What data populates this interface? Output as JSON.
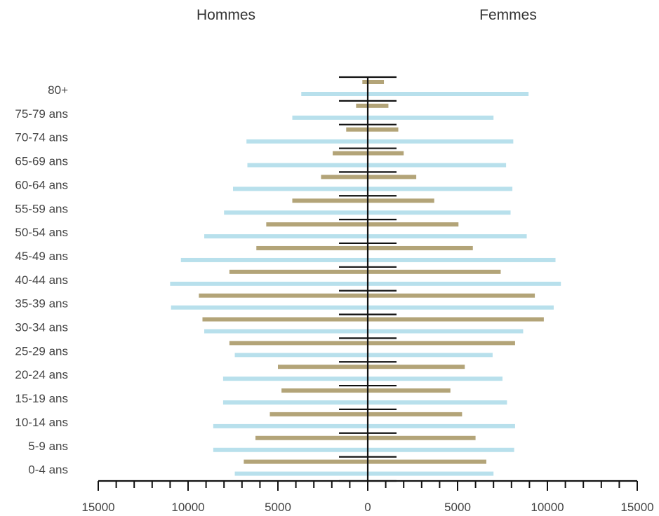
{
  "chart_data": {
    "type": "bar",
    "subtype": "population-pyramid",
    "headers": {
      "left": "Hommes",
      "right": "Femmes"
    },
    "categories": [
      "0-4 ans",
      "5-9 ans",
      "10-14 ans",
      "15-19 ans",
      "20-24 ans",
      "25-29 ans",
      "30-34 ans",
      "35-39 ans",
      "40-44 ans",
      "45-49 ans",
      "50-54 ans",
      "55-59 ans",
      "60-64 ans",
      "65-69 ans",
      "70-74 ans",
      "75-79 ans",
      "80+"
    ],
    "series": [
      {
        "side": "left",
        "color": "#b3a478",
        "values": [
          6900,
          6250,
          5450,
          4800,
          5000,
          7700,
          9200,
          9400,
          7700,
          6200,
          5650,
          4200,
          2600,
          1950,
          1200,
          650,
          300
        ]
      },
      {
        "side": "left",
        "color": "#b8e0ec",
        "values": [
          7400,
          8600,
          8600,
          8050,
          8050,
          7400,
          9100,
          10950,
          11000,
          10400,
          9100,
          8000,
          7500,
          6700,
          6750,
          4200,
          3700
        ]
      },
      {
        "side": "right",
        "color": "#b3a478",
        "values": [
          6600,
          6000,
          5250,
          4600,
          5400,
          8200,
          9800,
          9300,
          7400,
          5850,
          5050,
          3700,
          2700,
          2000,
          1700,
          1150,
          900
        ]
      },
      {
        "side": "right",
        "color": "#b8e0ec",
        "values": [
          7000,
          8150,
          8200,
          7750,
          7500,
          6950,
          8650,
          10350,
          10750,
          10450,
          8850,
          7950,
          8050,
          7700,
          8100,
          7000,
          8950
        ]
      }
    ],
    "xaxis": {
      "ticks": [
        15000,
        10000,
        5000,
        0,
        5000,
        10000,
        15000
      ],
      "range": [
        -15000,
        15000
      ],
      "minor_tick_step": 1000
    },
    "legend": "none",
    "grid": false
  }
}
